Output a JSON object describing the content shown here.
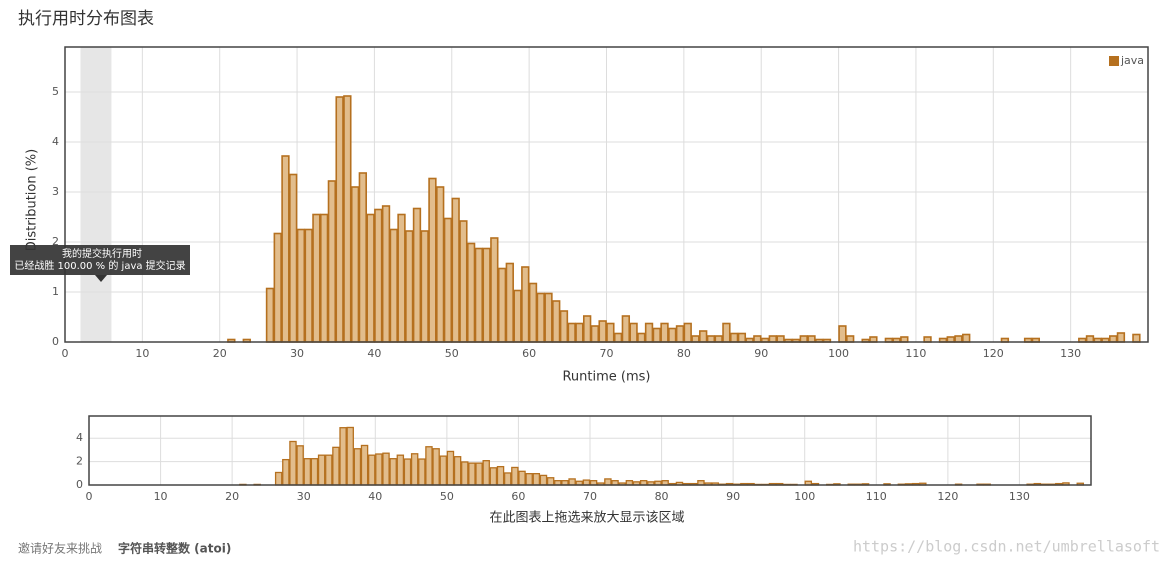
{
  "header": {
    "title": "执行用时分布图表"
  },
  "chart_data": [
    {
      "type": "histogram",
      "xlabel": "Runtime (ms)",
      "ylabel": "Distribution (%)",
      "legend": "top-right",
      "series_name": "java",
      "color": "#b5701f",
      "fill": "#e2bd8c",
      "highlight_band": [
        2,
        6
      ],
      "bins": [
        21,
        22,
        23,
        24,
        25,
        26,
        27,
        28,
        29,
        30,
        31,
        32,
        33,
        34,
        35,
        36,
        37,
        38,
        39,
        40,
        41,
        42,
        43,
        44,
        45,
        46,
        47,
        48,
        49,
        50,
        51,
        52,
        53,
        54,
        55,
        56,
        57,
        58,
        59,
        60,
        61,
        62,
        63,
        64,
        65,
        66,
        67,
        68,
        69,
        70,
        71,
        72,
        73,
        74,
        75,
        76,
        77,
        78,
        79,
        80,
        81,
        82,
        83,
        84,
        85,
        86,
        87,
        88,
        89,
        90,
        91,
        92,
        93,
        94,
        95,
        96,
        97,
        98,
        99,
        100,
        101,
        102,
        103,
        104,
        105,
        106,
        107,
        108,
        109,
        110,
        111,
        112,
        113,
        114,
        115,
        116,
        117,
        118,
        119,
        120,
        121,
        122,
        123,
        124,
        125,
        126,
        127,
        128,
        129,
        130,
        131,
        132,
        133,
        134,
        135,
        136,
        137,
        138,
        139
      ],
      "counts": [
        0.05,
        0,
        0.05,
        0,
        0,
        1.07,
        2.17,
        3.72,
        3.35,
        2.25,
        2.25,
        2.55,
        2.55,
        3.22,
        4.9,
        4.92,
        3.1,
        3.38,
        2.55,
        2.65,
        2.72,
        2.25,
        2.55,
        2.22,
        2.67,
        2.22,
        3.27,
        3.1,
        2.47,
        2.87,
        2.42,
        1.97,
        1.87,
        1.87,
        2.08,
        1.47,
        1.57,
        1.03,
        1.5,
        1.17,
        0.97,
        0.97,
        0.82,
        0.62,
        0.37,
        0.37,
        0.52,
        0.32,
        0.42,
        0.37,
        0.17,
        0.52,
        0.37,
        0.17,
        0.37,
        0.27,
        0.37,
        0.27,
        0.32,
        0.37,
        0.12,
        0.22,
        0.12,
        0.12,
        0.37,
        0.17,
        0.17,
        0.07,
        0.12,
        0.07,
        0.12,
        0.12,
        0.05,
        0.05,
        0.12,
        0.12,
        0.05,
        0.05,
        0,
        0.32,
        0.12,
        0,
        0.05,
        0.1,
        0,
        0.07,
        0.07,
        0.1,
        0,
        0,
        0.1,
        0,
        0.07,
        0.1,
        0.12,
        0.15,
        0,
        0,
        0,
        0,
        0.07,
        0,
        0,
        0.07,
        0.07,
        0,
        0,
        0,
        0,
        0,
        0.07,
        0.12,
        0.07,
        0.07,
        0.12,
        0.18,
        0,
        0.15
      ],
      "xlim": [
        0,
        140
      ],
      "ylim": [
        0,
        5.9
      ],
      "xticks": [
        0,
        10,
        20,
        30,
        40,
        50,
        60,
        70,
        80,
        90,
        100,
        110,
        120,
        130
      ],
      "yticks": [
        0,
        1,
        2,
        3,
        4,
        5
      ],
      "grid": true
    },
    {
      "type": "navigator",
      "xlabel": "在此图表上拖选来放大显示该区域",
      "xlim": [
        0,
        140
      ],
      "ylim": [
        0,
        5.9
      ],
      "xticks": [
        0,
        10,
        20,
        30,
        40,
        50,
        60,
        70,
        80,
        90,
        100,
        110,
        120,
        130
      ],
      "yticks": [
        0,
        2,
        4
      ],
      "grid": true
    }
  ],
  "tooltip": {
    "line1": "我的提交执行用时",
    "line2": "已经战胜 100.00 % 的 java 提交记录"
  },
  "footer": {
    "invite": "邀请好友来挑战",
    "problem": "字符串转整数 (atoi)"
  },
  "watermark": "https://blog.csdn.net/umbrellasoft"
}
